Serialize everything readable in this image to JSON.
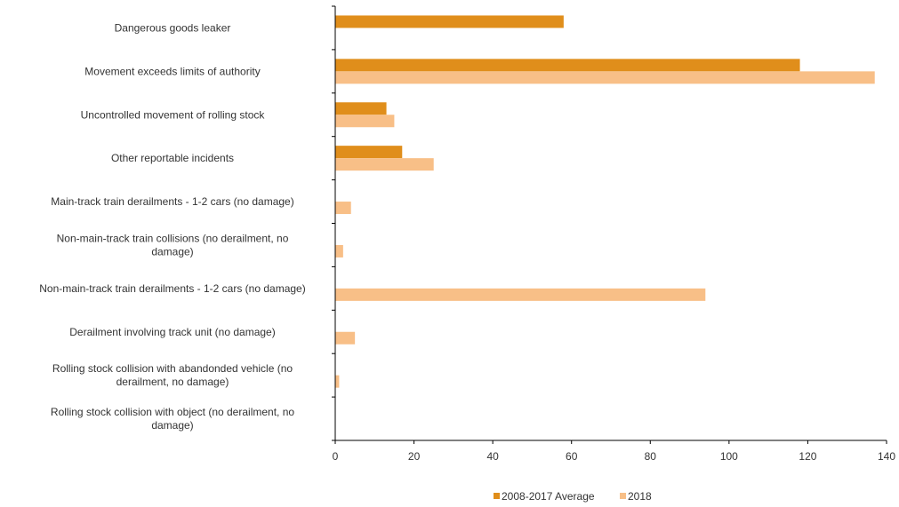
{
  "chart_data": {
    "type": "bar",
    "orientation": "horizontal",
    "categories": [
      [
        "Dangerous goods leaker"
      ],
      [
        "Movement exceeds limits of authority"
      ],
      [
        "Uncontrolled movement of rolling stock"
      ],
      [
        "Other reportable incidents"
      ],
      [
        "Main-track train derailments - 1-2 cars (no damage)"
      ],
      [
        "Non-main-track train collisions (no derailment, no",
        "damage)"
      ],
      [
        "Non-main-track train derailments - 1-2 cars (no damage)"
      ],
      [
        "Derailment involving track unit (no damage)"
      ],
      [
        "Rolling stock collision with abandonded vehicle  (no",
        "derailment, no damage)"
      ],
      [
        "Rolling stock collision with object  (no derailment, no",
        "damage)"
      ]
    ],
    "series": [
      {
        "name": "2008-2017 Average",
        "color": "#E08E1B",
        "values": [
          58,
          118,
          13,
          17,
          0,
          0,
          0,
          0,
          0,
          0
        ]
      },
      {
        "name": "2018",
        "color": "#F8BF87",
        "values": [
          0,
          137,
          15,
          25,
          4,
          2,
          94,
          5,
          1,
          0
        ]
      }
    ],
    "xlim": [
      0,
      140
    ],
    "xticks": [
      "0",
      "20",
      "40",
      "60",
      "80",
      "100",
      "120",
      "140"
    ],
    "grid": false,
    "legend_position": "bottom"
  }
}
